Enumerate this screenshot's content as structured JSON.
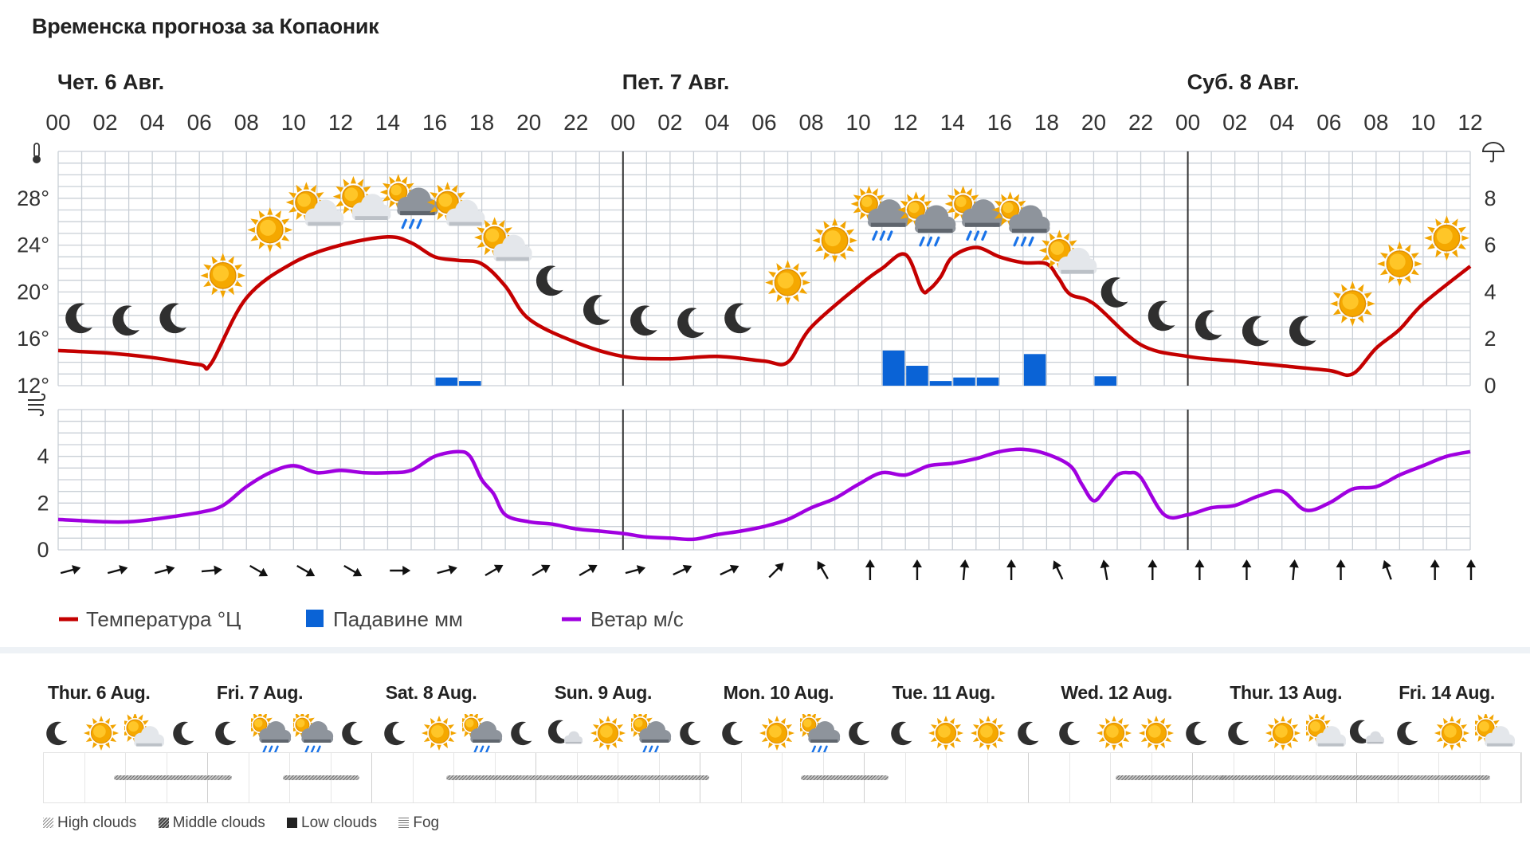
{
  "title": "Временска прогноза за Копаоник",
  "chart_data": {
    "type": "line",
    "x_unit": "hour",
    "x_range": [
      0,
      60
    ],
    "day_labels": [
      "Чет. 6 Авг.",
      "Пет. 7 Авг.",
      "Суб. 8 Авг."
    ],
    "hour_labels": [
      "00",
      "02",
      "04",
      "06",
      "08",
      "10",
      "12",
      "14",
      "16",
      "18",
      "20",
      "22",
      "00",
      "02",
      "04",
      "06",
      "08",
      "10",
      "12",
      "14",
      "16",
      "18",
      "20",
      "22",
      "00",
      "02",
      "04",
      "06",
      "08",
      "10",
      "12"
    ],
    "temperature": {
      "name": "Температура °Ц",
      "color": "#c40000",
      "ylim": [
        12,
        32
      ],
      "ticks": [
        "12°",
        "16°",
        "20°",
        "24°",
        "28°"
      ],
      "x": [
        0,
        2,
        4,
        6,
        6.5,
        8,
        10,
        12,
        14,
        15,
        16,
        17,
        18,
        19,
        20,
        22,
        24,
        26,
        28,
        30,
        31,
        32,
        34,
        35,
        36,
        36.7,
        37,
        37.5,
        38,
        39,
        40,
        41,
        42,
        42.5,
        43,
        44,
        46,
        48,
        50,
        52,
        54,
        55,
        56,
        57,
        58,
        60
      ],
      "y": [
        15.0,
        14.8,
        14.4,
        13.8,
        13.9,
        19.5,
        22.5,
        24.0,
        24.7,
        24.2,
        23.0,
        22.7,
        22.4,
        20.5,
        17.7,
        15.7,
        14.5,
        14.3,
        14.5,
        14.1,
        14.0,
        17.0,
        20.5,
        22.0,
        23.2,
        20.2,
        20.2,
        21.3,
        23.0,
        23.8,
        23.0,
        22.5,
        22.4,
        21.2,
        19.8,
        19.0,
        15.5,
        14.5,
        14.1,
        13.7,
        13.3,
        13.0,
        15.2,
        16.8,
        19.0,
        22.2
      ]
    },
    "precipitation": {
      "name": "Падавине мм",
      "color": "#0a63d6",
      "ylim": [
        0,
        10
      ],
      "ticks": [
        "0",
        "2",
        "4",
        "6",
        "8"
      ],
      "bars": [
        {
          "x": 16,
          "value": 0.35
        },
        {
          "x": 17,
          "value": 0.2
        },
        {
          "x": 35,
          "value": 1.5
        },
        {
          "x": 36,
          "value": 0.85
        },
        {
          "x": 37,
          "value": 0.2
        },
        {
          "x": 38,
          "value": 0.35
        },
        {
          "x": 39,
          "value": 0.35
        },
        {
          "x": 41,
          "value": 1.35
        },
        {
          "x": 44,
          "value": 0.4
        }
      ]
    },
    "wind": {
      "name": "Ветар м/с",
      "color": "#a000e0",
      "ylim": [
        0,
        6
      ],
      "ticks": [
        "0",
        "2",
        "4"
      ],
      "x": [
        0,
        2,
        3,
        4,
        6,
        7,
        8,
        9,
        10,
        11,
        12,
        13,
        14,
        15,
        16,
        17,
        17.5,
        18,
        18.5,
        19,
        20,
        21,
        22,
        23,
        24,
        25,
        26,
        27,
        28,
        29,
        30,
        31,
        32,
        33,
        34,
        35,
        36,
        37,
        38,
        39,
        40,
        41,
        42,
        43,
        43.5,
        44,
        44.5,
        45,
        45.5,
        46,
        47,
        48,
        49,
        50,
        51,
        52,
        53,
        54,
        55,
        56,
        57,
        58,
        59,
        60
      ],
      "y": [
        1.3,
        1.2,
        1.2,
        1.3,
        1.6,
        1.9,
        2.7,
        3.3,
        3.6,
        3.3,
        3.4,
        3.3,
        3.3,
        3.4,
        4.0,
        4.2,
        4.0,
        3.0,
        2.4,
        1.5,
        1.2,
        1.1,
        0.9,
        0.8,
        0.7,
        0.55,
        0.5,
        0.45,
        0.65,
        0.8,
        1.0,
        1.3,
        1.8,
        2.2,
        2.8,
        3.3,
        3.2,
        3.6,
        3.7,
        3.9,
        4.2,
        4.3,
        4.1,
        3.6,
        2.8,
        2.1,
        2.6,
        3.2,
        3.3,
        3.1,
        1.5,
        1.5,
        1.8,
        1.9,
        2.3,
        2.5,
        1.7,
        2.0,
        2.6,
        2.7,
        3.2,
        3.6,
        4.0,
        4.2
      ]
    },
    "weather_icons": [
      {
        "x": 1,
        "icon": "moon-icon",
        "temp": 17.8
      },
      {
        "x": 3,
        "icon": "moon-icon",
        "temp": 17.6
      },
      {
        "x": 5,
        "icon": "moon-icon",
        "temp": 17.8
      },
      {
        "x": 7,
        "icon": "sun-icon",
        "temp": 21.4
      },
      {
        "x": 9,
        "icon": "sun-icon",
        "temp": 25.3
      },
      {
        "x": 11,
        "icon": "partly-cloudy-icon",
        "temp": 27.1
      },
      {
        "x": 13,
        "icon": "partly-cloudy-icon",
        "temp": 27.6
      },
      {
        "x": 15,
        "icon": "cloud-rain-icon",
        "temp": 27.6
      },
      {
        "x": 17,
        "icon": "partly-cloudy-icon",
        "temp": 27.1
      },
      {
        "x": 19,
        "icon": "partly-cloudy-icon",
        "temp": 24.1
      },
      {
        "x": 21,
        "icon": "moon-icon",
        "temp": 21.0
      },
      {
        "x": 23,
        "icon": "moon-icon",
        "temp": 18.5
      },
      {
        "x": 25,
        "icon": "moon-icon",
        "temp": 17.6
      },
      {
        "x": 27,
        "icon": "moon-icon",
        "temp": 17.4
      },
      {
        "x": 29,
        "icon": "moon-icon",
        "temp": 17.8
      },
      {
        "x": 31,
        "icon": "sun-icon",
        "temp": 20.8
      },
      {
        "x": 33,
        "icon": "sun-icon",
        "temp": 24.4
      },
      {
        "x": 35,
        "icon": "cloud-rain-icon",
        "temp": 26.6
      },
      {
        "x": 37,
        "icon": "cloud-rain-icon",
        "temp": 26.1
      },
      {
        "x": 39,
        "icon": "cloud-rain-icon",
        "temp": 26.6
      },
      {
        "x": 41,
        "icon": "cloud-rain-icon",
        "temp": 26.1
      },
      {
        "x": 43,
        "icon": "partly-cloudy-icon",
        "temp": 23.0
      },
      {
        "x": 45,
        "icon": "moon-icon",
        "temp": 20.0
      },
      {
        "x": 47,
        "icon": "moon-icon",
        "temp": 18.0
      },
      {
        "x": 49,
        "icon": "moon-icon",
        "temp": 17.2
      },
      {
        "x": 51,
        "icon": "moon-icon",
        "temp": 16.7
      },
      {
        "x": 53,
        "icon": "moon-icon",
        "temp": 16.7
      },
      {
        "x": 55,
        "icon": "sun-icon",
        "temp": 19.0
      },
      {
        "x": 57,
        "icon": "sun-icon",
        "temp": 22.4
      },
      {
        "x": 59,
        "icon": "sun-icon",
        "temp": 24.6
      }
    ],
    "wind_directions": [
      {
        "x": 1,
        "angle": 255
      },
      {
        "x": 3,
        "angle": 255
      },
      {
        "x": 5,
        "angle": 255
      },
      {
        "x": 7,
        "angle": 265
      },
      {
        "x": 9,
        "angle": 300
      },
      {
        "x": 11,
        "angle": 300
      },
      {
        "x": 13,
        "angle": 300
      },
      {
        "x": 15,
        "angle": 270
      },
      {
        "x": 17,
        "angle": 255
      },
      {
        "x": 19,
        "angle": 240
      },
      {
        "x": 21,
        "angle": 240
      },
      {
        "x": 23,
        "angle": 240
      },
      {
        "x": 25,
        "angle": 255
      },
      {
        "x": 27,
        "angle": 245
      },
      {
        "x": 29,
        "angle": 245
      },
      {
        "x": 31,
        "angle": 225
      },
      {
        "x": 33,
        "angle": 150
      },
      {
        "x": 35,
        "angle": 180
      },
      {
        "x": 37,
        "angle": 180
      },
      {
        "x": 39,
        "angle": 185
      },
      {
        "x": 41,
        "angle": 180
      },
      {
        "x": 43,
        "angle": 155
      },
      {
        "x": 45,
        "angle": 170
      },
      {
        "x": 47,
        "angle": 180
      },
      {
        "x": 49,
        "angle": 180
      },
      {
        "x": 51,
        "angle": 180
      },
      {
        "x": 53,
        "angle": 185
      },
      {
        "x": 55,
        "angle": 180
      },
      {
        "x": 57,
        "angle": 160
      },
      {
        "x": 59,
        "angle": 180
      },
      {
        "x": 61,
        "angle": 180
      }
    ]
  },
  "legend": {
    "temperature_label": "Температура °Ц",
    "precip_label": "Падавине мм",
    "wind_label": "Ветар м/с"
  },
  "weekly": {
    "days": [
      {
        "label": "Thur. 6 Aug.",
        "icons": [
          "moon-icon",
          "sun-icon",
          "partly-cloudy-icon",
          "moon-icon"
        ]
      },
      {
        "label": "Fri. 7 Aug.",
        "icons": [
          "moon-icon",
          "cloud-rain-icon",
          "cloud-rain-icon",
          "moon-icon"
        ]
      },
      {
        "label": "Sat. 8 Aug.",
        "icons": [
          "moon-icon",
          "sun-icon",
          "cloud-rain-icon",
          "moon-icon"
        ]
      },
      {
        "label": "Sun. 9 Aug.",
        "icons": [
          "moon-cloud-icon",
          "sun-icon",
          "cloud-rain-icon",
          "moon-icon"
        ]
      },
      {
        "label": "Mon. 10 Aug.",
        "icons": [
          "moon-icon",
          "sun-icon",
          "cloud-rain-icon",
          "moon-icon"
        ]
      },
      {
        "label": "Tue. 11 Aug.",
        "icons": [
          "moon-icon",
          "sun-icon",
          "sun-icon",
          "moon-icon"
        ]
      },
      {
        "label": "Wed. 12 Aug.",
        "icons": [
          "moon-icon",
          "sun-icon",
          "sun-icon",
          "moon-icon"
        ]
      },
      {
        "label": "Thur. 13 Aug.",
        "icons": [
          "moon-icon",
          "sun-icon",
          "partly-cloudy-icon",
          "moon-cloud-icon"
        ]
      },
      {
        "label": "Fri. 14 Aug.",
        "icons": [
          "moon-icon",
          "sun-icon",
          "partly-cloudy-icon"
        ]
      }
    ],
    "cloud_legend": {
      "high": "High clouds",
      "middle": "Middle clouds",
      "low": "Low clouds",
      "fog": "Fog"
    }
  }
}
